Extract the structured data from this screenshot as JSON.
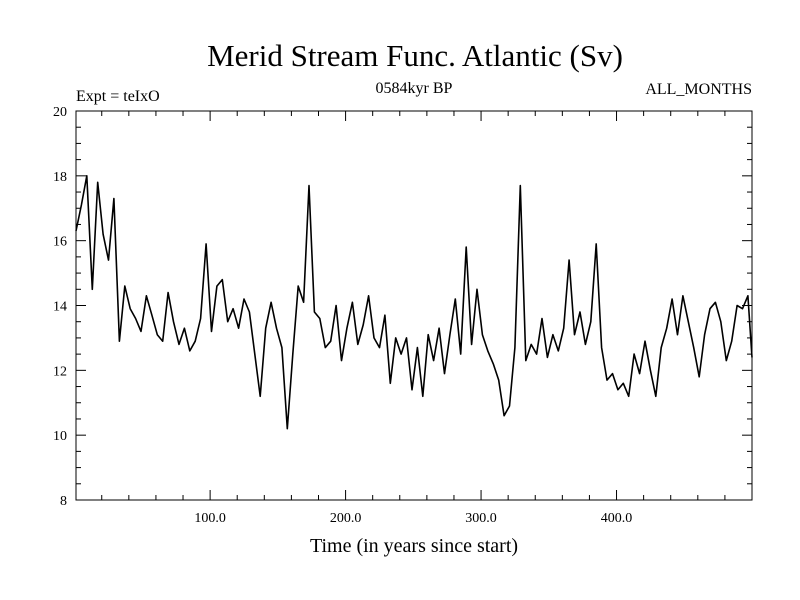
{
  "chart_data": {
    "type": "line",
    "title": "Merid Stream Func. Atlantic (Sv)",
    "subtitle_left": "Expt = teIxO",
    "subtitle_center": "0584kyr BP",
    "subtitle_right": "ALL_MONTHS",
    "xlabel": "Time (in years since start)",
    "ylabel": "",
    "xlim": [
      1,
      500
    ],
    "ylim": [
      8,
      20
    ],
    "xticks": [
      100,
      200,
      300,
      400
    ],
    "xtick_labels": [
      "100.0",
      "200.0",
      "300.0",
      "400.0"
    ],
    "yticks": [
      8,
      10,
      12,
      14,
      16,
      18,
      20
    ],
    "ytick_labels": [
      "8",
      "10",
      "12",
      "14",
      "16",
      "18",
      "20"
    ],
    "grid": false,
    "legend": "none",
    "series": [
      {
        "name": "Merid Stream Func. Atlantic",
        "color": "#000000",
        "x": [
          1,
          5,
          9,
          13,
          17,
          21,
          25,
          29,
          33,
          37,
          41,
          45,
          49,
          53,
          57,
          61,
          65,
          69,
          73,
          77,
          81,
          85,
          89,
          93,
          97,
          101,
          105,
          109,
          113,
          117,
          121,
          125,
          129,
          133,
          137,
          141,
          145,
          149,
          153,
          157,
          161,
          165,
          169,
          173,
          177,
          181,
          185,
          189,
          193,
          197,
          201,
          205,
          209,
          213,
          217,
          221,
          225,
          229,
          233,
          237,
          241,
          245,
          249,
          253,
          257,
          261,
          265,
          269,
          273,
          277,
          281,
          285,
          289,
          293,
          297,
          301,
          305,
          309,
          313,
          317,
          321,
          325,
          329,
          333,
          337,
          341,
          345,
          349,
          353,
          357,
          361,
          365,
          369,
          373,
          377,
          381,
          385,
          389,
          393,
          397,
          401,
          405,
          409,
          413,
          417,
          421,
          425,
          429,
          433,
          437,
          441,
          445,
          449,
          453,
          457,
          461,
          465,
          469,
          473,
          477,
          481,
          485,
          489,
          493,
          497,
          500
        ],
        "values": [
          16.3,
          17.1,
          18.0,
          14.5,
          17.8,
          16.2,
          15.4,
          17.3,
          12.9,
          14.6,
          13.9,
          13.6,
          13.2,
          14.3,
          13.7,
          13.1,
          12.9,
          14.4,
          13.5,
          12.8,
          13.3,
          12.6,
          12.9,
          13.6,
          15.9,
          13.2,
          14.6,
          14.8,
          13.5,
          13.9,
          13.3,
          14.2,
          13.8,
          12.5,
          11.2,
          13.3,
          14.1,
          13.3,
          12.7,
          10.2,
          12.5,
          14.6,
          14.1,
          17.7,
          13.8,
          13.6,
          12.7,
          12.9,
          14.0,
          12.3,
          13.3,
          14.1,
          12.8,
          13.4,
          14.3,
          13.0,
          12.7,
          13.7,
          11.6,
          13.0,
          12.5,
          13.0,
          11.4,
          12.7,
          11.2,
          13.1,
          12.3,
          13.3,
          11.9,
          13.1,
          14.2,
          12.5,
          15.8,
          12.8,
          14.5,
          13.1,
          12.6,
          12.2,
          11.7,
          10.6,
          10.9,
          12.7,
          17.7,
          12.3,
          12.8,
          12.5,
          13.6,
          12.4,
          13.1,
          12.6,
          13.3,
          15.4,
          13.1,
          13.8,
          12.8,
          13.5,
          15.9,
          12.7,
          11.7,
          11.9,
          11.4,
          11.6,
          11.2,
          12.5,
          11.9,
          12.9,
          12.0,
          11.2,
          12.7,
          13.3,
          14.2,
          13.1,
          14.3,
          13.5,
          12.7,
          11.8,
          13.1,
          13.9,
          14.1,
          13.5,
          12.3,
          12.9,
          14.0,
          13.9,
          14.3,
          12.4
        ]
      }
    ]
  }
}
